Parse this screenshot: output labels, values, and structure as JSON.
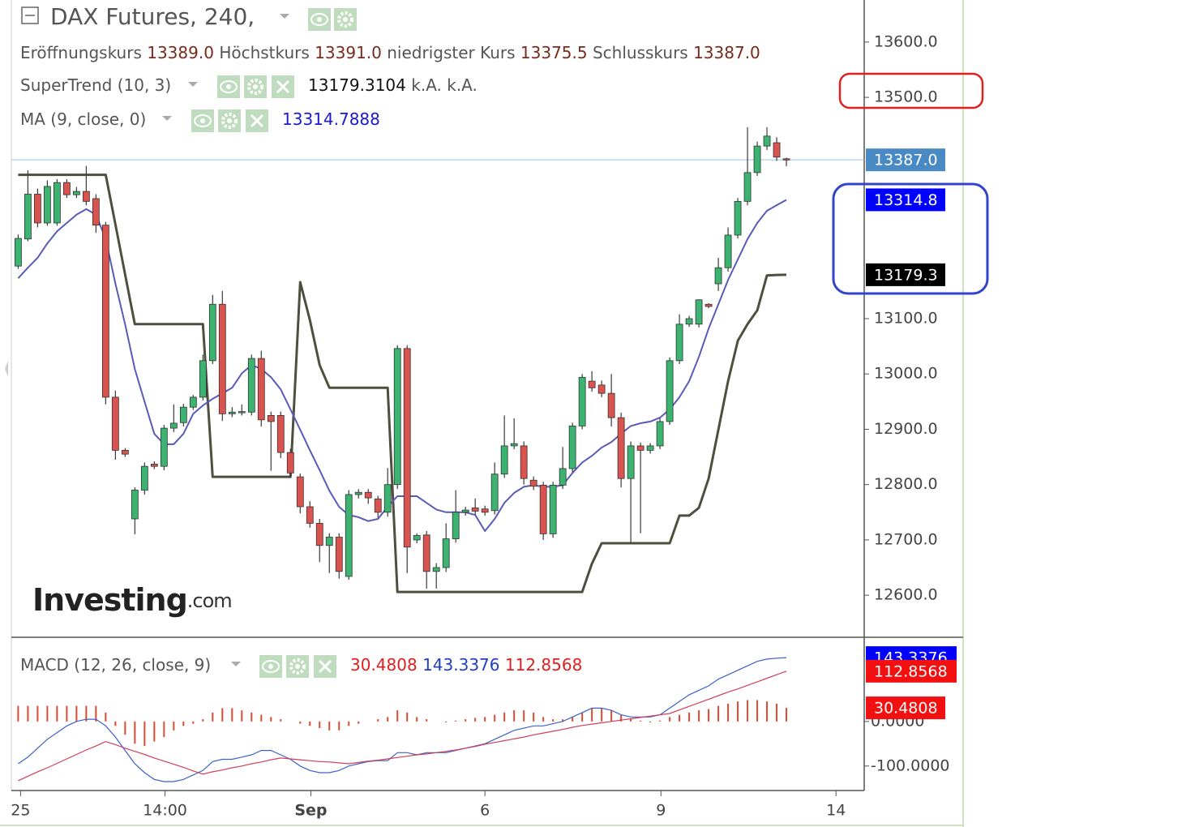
{
  "chart_data": {
    "type": "candlestick",
    "title": "DAX Futures, 240,",
    "ohlc_legend": [
      {
        "label": "Eröffnungskurs",
        "value": "13389.0"
      },
      {
        "label": "Höchstkurs",
        "value": "13391.0"
      },
      {
        "label": "niedrigster Kurs",
        "value": "13375.5"
      },
      {
        "label": "Schlusskurs",
        "value": "13387.0"
      }
    ],
    "xlim": [
      -0.7,
      87
    ],
    "xticks": [
      {
        "value": 0.25,
        "label": "25"
      },
      {
        "value": 15.1,
        "label": "14:00"
      },
      {
        "value": 30.1,
        "label": "Sep"
      },
      {
        "value": 48,
        "label": "6"
      },
      {
        "value": 66.1,
        "label": "9"
      },
      {
        "value": 84.1,
        "label": "14"
      }
    ],
    "ylim": [
      12524,
      13676
    ],
    "yticks": [
      {
        "value": 13600,
        "label": "13600.0"
      },
      {
        "value": 13500,
        "label": "13500.0"
      },
      {
        "value": 13100,
        "label": "13100.0"
      },
      {
        "value": 13000,
        "label": "13000.0"
      },
      {
        "value": 12900,
        "label": "12900.0"
      },
      {
        "value": 12800,
        "label": "12800.0"
      },
      {
        "value": 12700,
        "label": "12700.0"
      },
      {
        "value": 12600,
        "label": "12600.0"
      }
    ],
    "up_color": "#3cb371",
    "down_color": "#d9534f",
    "open": [
      13195,
      13244,
      13325,
      13273,
      13273,
      13346,
      13324,
      13330,
      13317,
      13269,
      12958,
      12862,
      12738,
      12790,
      12837,
      12833,
      12902,
      12912,
      12940,
      12958,
      13024,
      13126,
      12928,
      12930,
      12931,
      13028,
      12925,
      12925,
      12858,
      12814,
      12760,
      12730,
      12690,
      12705,
      12634,
      12782,
      12786,
      12774,
      12750,
      12800,
      13046,
      12700,
      12709,
      12643,
      12650,
      12702,
      12750,
      12758,
      12756,
      12753,
      12819,
      12870,
      12870,
      12808,
      12799,
      12711,
      12799,
      12829,
      12906,
      12987,
      12980,
      12965,
      12921,
      12811,
      12870,
      12862,
      12870,
      12914,
      13024,
      13090,
      13090,
      13126,
      13163,
      13192,
      13251,
      13312,
      13364,
      13412,
      13418,
      13389
    ],
    "high": [
      13252,
      13368,
      13335,
      13350,
      13352,
      13352,
      13338,
      13376,
      13325,
      13275,
      12970,
      12866,
      12795,
      12840,
      12842,
      12908,
      12945,
      12946,
      12962,
      13035,
      13143,
      13150,
      12940,
      12945,
      13035,
      13042,
      12932,
      12932,
      12865,
      12820,
      12770,
      12738,
      12712,
      12712,
      12790,
      12792,
      12792,
      12780,
      12830,
      13052,
      13052,
      12712,
      12716,
      12658,
      12730,
      12790,
      12760,
      12775,
      12762,
      12840,
      12925,
      12920,
      12878,
      12815,
      12805,
      12805,
      12868,
      12912,
      13000,
      13005,
      12988,
      13000,
      12930,
      12878,
      12876,
      12875,
      12920,
      13030,
      13108,
      13105,
      13135,
      13128,
      13210,
      13265,
      13318,
      13446,
      13420,
      13446,
      13428,
      13391
    ],
    "low": [
      13190,
      13240,
      13265,
      13268,
      13268,
      13318,
      13318,
      13305,
      13255,
      12945,
      12845,
      12850,
      12710,
      12782,
      12828,
      12826,
      12895,
      12905,
      12935,
      12952,
      13018,
      12915,
      12922,
      12925,
      12925,
      12905,
      12825,
      12848,
      12812,
      12748,
      12722,
      12660,
      12640,
      12630,
      12628,
      12775,
      12765,
      12740,
      12742,
      12792,
      12640,
      12694,
      12612,
      12612,
      12642,
      12695,
      12744,
      12746,
      12744,
      12746,
      12812,
      12864,
      12800,
      12790,
      12700,
      12704,
      12792,
      12822,
      12900,
      12968,
      12958,
      12905,
      12795,
      12694,
      12712,
      12856,
      12864,
      12908,
      13018,
      13085,
      13084,
      13119,
      13150,
      13185,
      13245,
      13305,
      13358,
      13405,
      13385,
      13375.5
    ],
    "close": [
      13245,
      13325,
      13273,
      13339,
      13346,
      13324,
      13330,
      13312,
      13269,
      12958,
      12862,
      12855,
      12790,
      12833,
      12833,
      12902,
      12911,
      12940,
      12958,
      13024,
      13126,
      12928,
      12931,
      12932,
      13028,
      12917,
      12914,
      12858,
      12821,
      12760,
      12730,
      12690,
      12705,
      12643,
      12782,
      12786,
      12776,
      12750,
      12800,
      13046,
      12687,
      12708,
      12643,
      12650,
      12702,
      12750,
      12754,
      12752,
      12750,
      12819,
      12870,
      12874,
      12811,
      12797,
      12711,
      12799,
      12829,
      12906,
      12994,
      12975,
      12965,
      12921,
      12811,
      12870,
      12862,
      12870,
      12914,
      13024,
      13090,
      13100,
      13134,
      13122,
      13192,
      13251,
      13312,
      13364,
      13412,
      13430,
      13392,
      13387
    ],
    "last_price_label": "13387.0",
    "last_price_color": "#4a8ac4",
    "overlays": [
      {
        "name": "SuperTrend (10, 3)",
        "color": "#4f4f3f",
        "width": 3,
        "label_color": "#000000",
        "last_label": "13179.3",
        "legend_suffix": "k.A. k.A.",
        "values": [
          13360,
          13360,
          13360,
          13360,
          13360,
          13360,
          13360,
          13360,
          13360,
          13360,
          13270,
          13180,
          13090,
          13090,
          13090,
          13090,
          13090,
          13090,
          13090,
          13090,
          12814,
          12814,
          12814,
          12814,
          12814,
          12814,
          12814,
          12814,
          12814,
          13166,
          13097,
          13016,
          12975,
          12975,
          12975,
          12975,
          12975,
          12975,
          12975,
          12606,
          12606,
          12606,
          12606,
          12606,
          12606,
          12606,
          12606,
          12606,
          12606,
          12606,
          12606,
          12606,
          12606,
          12606,
          12606,
          12606,
          12606,
          12606,
          12606,
          12657,
          12694,
          12694,
          12694,
          12694,
          12694,
          12694,
          12694,
          12694,
          12744,
          12744,
          12758,
          12811,
          12899,
          12987,
          13060,
          13090,
          13115,
          13178,
          13179,
          13179.3104
        ]
      },
      {
        "name": "MA (9, close, 0)",
        "color": "#5a5ab8",
        "width": 2,
        "label_color": "#0000ff",
        "last_label": "13314.8",
        "values": [
          13173,
          13192,
          13210,
          13236,
          13258,
          13273,
          13288,
          13298,
          13288,
          13244,
          13163,
          13090,
          13009,
          12950,
          12892,
          12873,
          12873,
          12892,
          12928,
          12943,
          12955,
          12965,
          12975,
          13001,
          13016,
          13009,
          12994,
          12972,
          12936,
          12899,
          12862,
          12826,
          12789,
          12760,
          12745,
          12741,
          12734,
          12738,
          12760,
          12779,
          12779,
          12779,
          12767,
          12755,
          12750,
          12750,
          12750,
          12745,
          12716,
          12738,
          12767,
          12785,
          12796,
          12799,
          12796,
          12796,
          12799,
          12821,
          12840,
          12852,
          12867,
          12877,
          12892,
          12906,
          12911,
          12914,
          12921,
          12936,
          12958,
          12987,
          13031,
          13082,
          13126,
          13170,
          13207,
          13244,
          13273,
          13295,
          13305,
          13314.7888
        ]
      }
    ],
    "macd": {
      "name": "MACD (12, 26, close, 9)",
      "ylim": [
        -155,
        189
      ],
      "yticks": [
        {
          "value": 0,
          "label": "0.0000"
        },
        {
          "value": -100,
          "label": "-100.0000"
        }
      ],
      "histogram": {
        "color": "#e04a30",
        "last_label": "30.4808",
        "values": [
          35,
          35,
          35,
          35,
          35,
          35,
          35,
          35,
          35,
          20,
          -10,
          -30,
          -50,
          -55,
          -45,
          -35,
          -20,
          -10,
          -5,
          5,
          20,
          30,
          30,
          25,
          20,
          15,
          10,
          5,
          0,
          -5,
          -10,
          -15,
          -20,
          -20,
          -10,
          -5,
          0,
          5,
          10,
          25,
          20,
          10,
          5,
          0,
          -2,
          2,
          5,
          8,
          10,
          15,
          20,
          25,
          25,
          20,
          10,
          5,
          5,
          10,
          20,
          30,
          30,
          25,
          15,
          5,
          2,
          -2,
          2,
          10,
          15,
          20,
          25,
          28,
          35,
          40,
          45,
          48,
          48,
          45,
          40,
          30.4808
        ]
      },
      "macd": {
        "color": "#3a62c8",
        "last_label": "143.3376",
        "values": [
          -95,
          -80,
          -60,
          -40,
          -25,
          -10,
          0,
          5,
          5,
          -10,
          -35,
          -65,
          -95,
          -115,
          -130,
          -135,
          -135,
          -130,
          -120,
          -110,
          -90,
          -85,
          -85,
          -80,
          -75,
          -65,
          -65,
          -75,
          -85,
          -100,
          -110,
          -115,
          -115,
          -110,
          -100,
          -95,
          -90,
          -88,
          -88,
          -70,
          -70,
          -75,
          -70,
          -70,
          -70,
          -65,
          -60,
          -55,
          -50,
          -40,
          -30,
          -20,
          -15,
          -10,
          -10,
          -5,
          0,
          10,
          20,
          30,
          30,
          25,
          15,
          10,
          10,
          10,
          15,
          30,
          45,
          60,
          70,
          80,
          95,
          105,
          115,
          125,
          135,
          140,
          142,
          143.3376
        ]
      },
      "signal": {
        "color": "#d0405a",
        "last_label": "112.8568",
        "values": [
          -133,
          -123,
          -113,
          -104,
          -94,
          -84,
          -74,
          -64,
          -55,
          -45,
          -52,
          -60,
          -67,
          -74,
          -82,
          -89,
          -96,
          -103,
          -111,
          -118,
          -113,
          -109,
          -104,
          -100,
          -95,
          -91,
          -86,
          -82,
          -84,
          -86,
          -88,
          -90,
          -91,
          -93,
          -95,
          -92,
          -89,
          -87,
          -84,
          -81,
          -78,
          -75,
          -73,
          -70,
          -67,
          -64,
          -60,
          -56,
          -51,
          -47,
          -43,
          -39,
          -35,
          -30,
          -26,
          -22,
          -18,
          -13,
          -9,
          -6,
          -3,
          0,
          3,
          6,
          9,
          12,
          15,
          18,
          26,
          34,
          42,
          50,
          58,
          66,
          73,
          81,
          89,
          97,
          105,
          112.8568
        ]
      }
    },
    "watermark": {
      "brand": "Investing",
      "suffix": ".com"
    }
  }
}
